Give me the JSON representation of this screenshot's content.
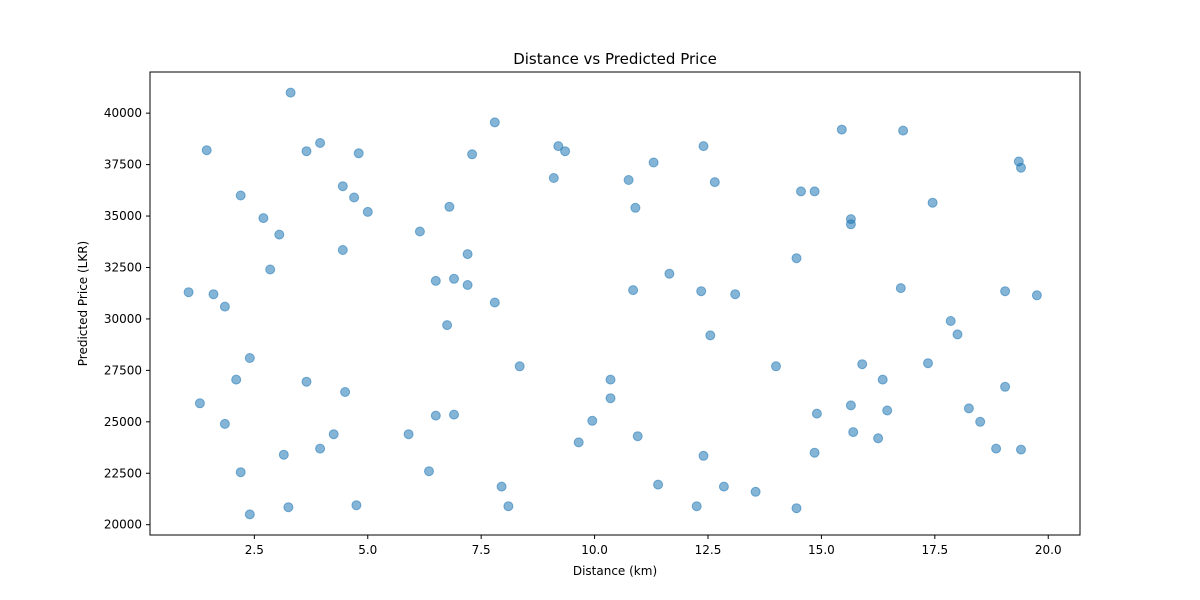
{
  "chart_data": {
    "type": "scatter",
    "title": "Distance vs Predicted Price",
    "xlabel": "Distance (km)",
    "ylabel": "Predicted Price (LKR)",
    "xlim": [
      0.2,
      20.7
    ],
    "ylim": [
      19500,
      42000
    ],
    "x_ticks": [
      2.5,
      5.0,
      7.5,
      10.0,
      12.5,
      15.0,
      17.5,
      20.0
    ],
    "x_tick_labels": [
      "2.5",
      "5.0",
      "7.5",
      "10.0",
      "12.5",
      "15.0",
      "17.5",
      "20.0"
    ],
    "y_ticks": [
      20000,
      22500,
      25000,
      27500,
      30000,
      32500,
      35000,
      37500,
      40000
    ],
    "y_tick_labels": [
      "20000",
      "22500",
      "25000",
      "27500",
      "30000",
      "32500",
      "35000",
      "37500",
      "40000"
    ],
    "grid": false,
    "legend": "none",
    "marker_color": "#1f77b4",
    "marker_alpha": 0.55,
    "points": [
      [
        3.3,
        41000
      ],
      [
        1.45,
        38200
      ],
      [
        3.65,
        38150
      ],
      [
        3.95,
        38550
      ],
      [
        4.8,
        38050
      ],
      [
        2.2,
        36000
      ],
      [
        2.7,
        34900
      ],
      [
        3.05,
        34100
      ],
      [
        4.45,
        36450
      ],
      [
        4.7,
        35900
      ],
      [
        5.0,
        35200
      ],
      [
        2.85,
        32400
      ],
      [
        4.45,
        33350
      ],
      [
        1.05,
        31300
      ],
      [
        1.6,
        31200
      ],
      [
        1.85,
        30600
      ],
      [
        2.4,
        28100
      ],
      [
        2.1,
        27050
      ],
      [
        3.65,
        26950
      ],
      [
        4.5,
        26450
      ],
      [
        1.3,
        25900
      ],
      [
        1.85,
        24900
      ],
      [
        4.25,
        24400
      ],
      [
        3.95,
        23700
      ],
      [
        3.15,
        23400
      ],
      [
        2.2,
        22550
      ],
      [
        2.4,
        20500
      ],
      [
        3.25,
        20850
      ],
      [
        4.75,
        20950
      ],
      [
        7.8,
        39550
      ],
      [
        7.3,
        38000
      ],
      [
        6.8,
        35450
      ],
      [
        6.15,
        34250
      ],
      [
        7.2,
        33150
      ],
      [
        6.5,
        31850
      ],
      [
        6.9,
        31950
      ],
      [
        7.2,
        31650
      ],
      [
        7.8,
        30800
      ],
      [
        6.75,
        29700
      ],
      [
        8.35,
        27700
      ],
      [
        5.9,
        24400
      ],
      [
        6.5,
        25300
      ],
      [
        6.9,
        25350
      ],
      [
        6.35,
        22600
      ],
      [
        7.95,
        21850
      ],
      [
        8.1,
        20900
      ],
      [
        9.2,
        38400
      ],
      [
        9.35,
        38150
      ],
      [
        9.1,
        36850
      ],
      [
        10.9,
        35400
      ],
      [
        10.75,
        36750
      ],
      [
        11.3,
        37600
      ],
      [
        12.4,
        38400
      ],
      [
        12.65,
        36650
      ],
      [
        11.65,
        32200
      ],
      [
        10.85,
        31400
      ],
      [
        12.35,
        31350
      ],
      [
        13.1,
        31200
      ],
      [
        12.55,
        29200
      ],
      [
        10.35,
        27050
      ],
      [
        10.35,
        26150
      ],
      [
        9.95,
        25050
      ],
      [
        9.65,
        24000
      ],
      [
        10.95,
        24300
      ],
      [
        12.4,
        23350
      ],
      [
        11.4,
        21950
      ],
      [
        12.85,
        21850
      ],
      [
        12.25,
        20900
      ],
      [
        14.55,
        36200
      ],
      [
        14.85,
        36200
      ],
      [
        15.45,
        39200
      ],
      [
        16.8,
        39150
      ],
      [
        15.65,
        34850
      ],
      [
        15.65,
        34600
      ],
      [
        17.45,
        35650
      ],
      [
        14.45,
        32950
      ],
      [
        16.75,
        31500
      ],
      [
        14.0,
        27700
      ],
      [
        15.9,
        27800
      ],
      [
        16.35,
        27050
      ],
      [
        17.35,
        27850
      ],
      [
        15.65,
        25800
      ],
      [
        16.45,
        25550
      ],
      [
        14.9,
        25400
      ],
      [
        15.7,
        24500
      ],
      [
        16.25,
        24200
      ],
      [
        14.85,
        23500
      ],
      [
        13.55,
        21600
      ],
      [
        14.45,
        20800
      ],
      [
        19.35,
        37650
      ],
      [
        19.4,
        37350
      ],
      [
        17.85,
        29900
      ],
      [
        18.0,
        29250
      ],
      [
        19.05,
        31350
      ],
      [
        19.75,
        31150
      ],
      [
        19.05,
        26700
      ],
      [
        18.25,
        25650
      ],
      [
        18.5,
        25000
      ],
      [
        18.85,
        23700
      ],
      [
        19.4,
        23650
      ]
    ]
  }
}
